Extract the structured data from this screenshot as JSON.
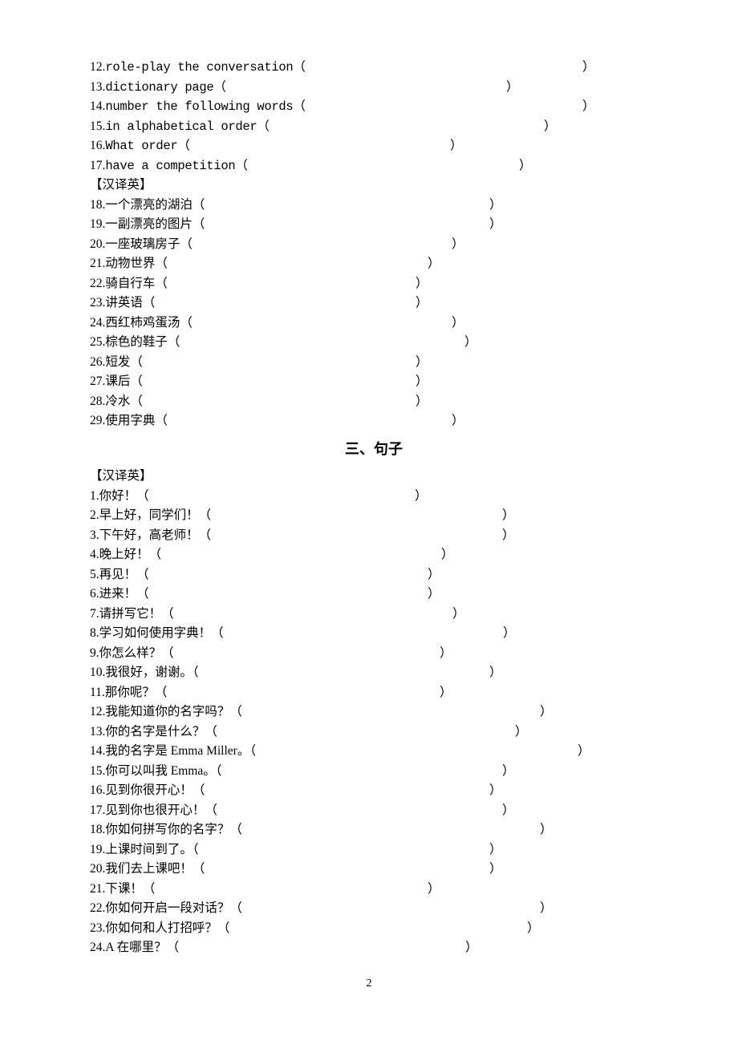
{
  "page": {
    "number": "2"
  },
  "sections": {
    "englishToChinese": {
      "items": [
        {
          "num": "12",
          "text": "role-play the conversation",
          "closeLeft": 614,
          "isEnglish": true
        },
        {
          "num": "13",
          "text": "dictionary page",
          "closeLeft": 519,
          "isEnglish": true
        },
        {
          "num": "14",
          "text": "number the following words",
          "closeLeft": 614,
          "isEnglish": true
        },
        {
          "num": "15",
          "text": "in alphabetical order",
          "closeLeft": 566,
          "isEnglish": true
        },
        {
          "num": "16",
          "text": "What order",
          "closeLeft": 449,
          "isEnglish": true
        },
        {
          "num": "17",
          "text": "have a competition",
          "closeLeft": 535,
          "isEnglish": true
        }
      ]
    },
    "chineseToEnglishHeader": "【汉译英】",
    "chineseToEnglishWords": {
      "items": [
        {
          "num": "18",
          "text": "一个漂亮的湖泊",
          "closeLeft": 498,
          "isEnglish": false
        },
        {
          "num": "19",
          "text": "一副漂亮的图片",
          "closeLeft": 498,
          "isEnglish": false
        },
        {
          "num": "20",
          "text": "一座玻璃房子",
          "closeLeft": 451,
          "isEnglish": false
        },
        {
          "num": "21",
          "text": "动物世界",
          "closeLeft": 421,
          "isEnglish": false
        },
        {
          "num": "22",
          "text": "骑自行车",
          "closeLeft": 406,
          "isEnglish": false
        },
        {
          "num": "23",
          "text": "讲英语",
          "closeLeft": 406,
          "isEnglish": false
        },
        {
          "num": "24",
          "text": "西红柿鸡蛋汤",
          "closeLeft": 451,
          "isEnglish": false
        },
        {
          "num": "25",
          "text": "棕色的鞋子",
          "closeLeft": 467,
          "isEnglish": false
        },
        {
          "num": "26",
          "text": "短发",
          "closeLeft": 406,
          "isEnglish": false
        },
        {
          "num": "27",
          "text": "课后",
          "closeLeft": 406,
          "isEnglish": false
        },
        {
          "num": "28",
          "text": "冷水",
          "closeLeft": 406,
          "isEnglish": false
        },
        {
          "num": "29",
          "text": "使用字典",
          "closeLeft": 451,
          "isEnglish": false
        }
      ]
    },
    "sentencesTitle": "三、句子",
    "sentencesHeader": "【汉译英】",
    "sentences": {
      "items": [
        {
          "num": "1",
          "text": "你好！",
          "closeLeft": 405,
          "isEnglish": false
        },
        {
          "num": "2",
          "text": "早上好，同学们！",
          "closeLeft": 514,
          "isEnglish": false
        },
        {
          "num": "3",
          "text": "下午好，高老师！",
          "closeLeft": 514,
          "isEnglish": false
        },
        {
          "num": "4",
          "text": "晚上好！",
          "closeLeft": 438,
          "isEnglish": false
        },
        {
          "num": "5",
          "text": "再见！",
          "closeLeft": 421,
          "isEnglish": false
        },
        {
          "num": "6",
          "text": "进来！",
          "closeLeft": 421,
          "isEnglish": false
        },
        {
          "num": "7",
          "text": "请拼写它！",
          "closeLeft": 452,
          "isEnglish": false
        },
        {
          "num": "8",
          "text": "学习如何使用字典！",
          "closeLeft": 515,
          "isEnglish": false
        },
        {
          "num": "9",
          "text": "你怎么样？",
          "closeLeft": 436,
          "isEnglish": false
        },
        {
          "num": "10",
          "text": "我很好，谢谢。",
          "closeLeft": 498,
          "isEnglish": false
        },
        {
          "num": "11",
          "text": "那你呢？",
          "closeLeft": 436,
          "isEnglish": false
        },
        {
          "num": "12",
          "text": "我能知道你的名字吗？",
          "closeLeft": 561,
          "isEnglish": false
        },
        {
          "num": "13",
          "text": "你的名字是什么？",
          "closeLeft": 530,
          "isEnglish": false
        },
        {
          "num": "14",
          "text": "我的名字是 Emma Miller。",
          "closeLeft": 608,
          "isEnglish": false
        },
        {
          "num": "15",
          "text": "你可以叫我 Emma。",
          "closeLeft": 514,
          "isEnglish": false
        },
        {
          "num": "16",
          "text": "见到你很开心！",
          "closeLeft": 498,
          "isEnglish": false
        },
        {
          "num": "17",
          "text": "见到你也很开心！",
          "closeLeft": 514,
          "isEnglish": false
        },
        {
          "num": "18",
          "text": "你如何拼写你的名字？",
          "closeLeft": 561,
          "isEnglish": false
        },
        {
          "num": "19",
          "text": "上课时间到了。",
          "closeLeft": 498,
          "isEnglish": false
        },
        {
          "num": "20",
          "text": "我们去上课吧！",
          "closeLeft": 498,
          "isEnglish": false
        },
        {
          "num": "21",
          "text": "下课！",
          "closeLeft": 421,
          "isEnglish": false
        },
        {
          "num": "22",
          "text": "你如何开启一段对话？",
          "closeLeft": 561,
          "isEnglish": false
        },
        {
          "num": "23",
          "text": "你如何和人打招呼？",
          "closeLeft": 545,
          "isEnglish": false
        },
        {
          "num": "24",
          "text": "A 在哪里？",
          "closeLeft": 468,
          "isEnglish": false
        }
      ]
    }
  }
}
